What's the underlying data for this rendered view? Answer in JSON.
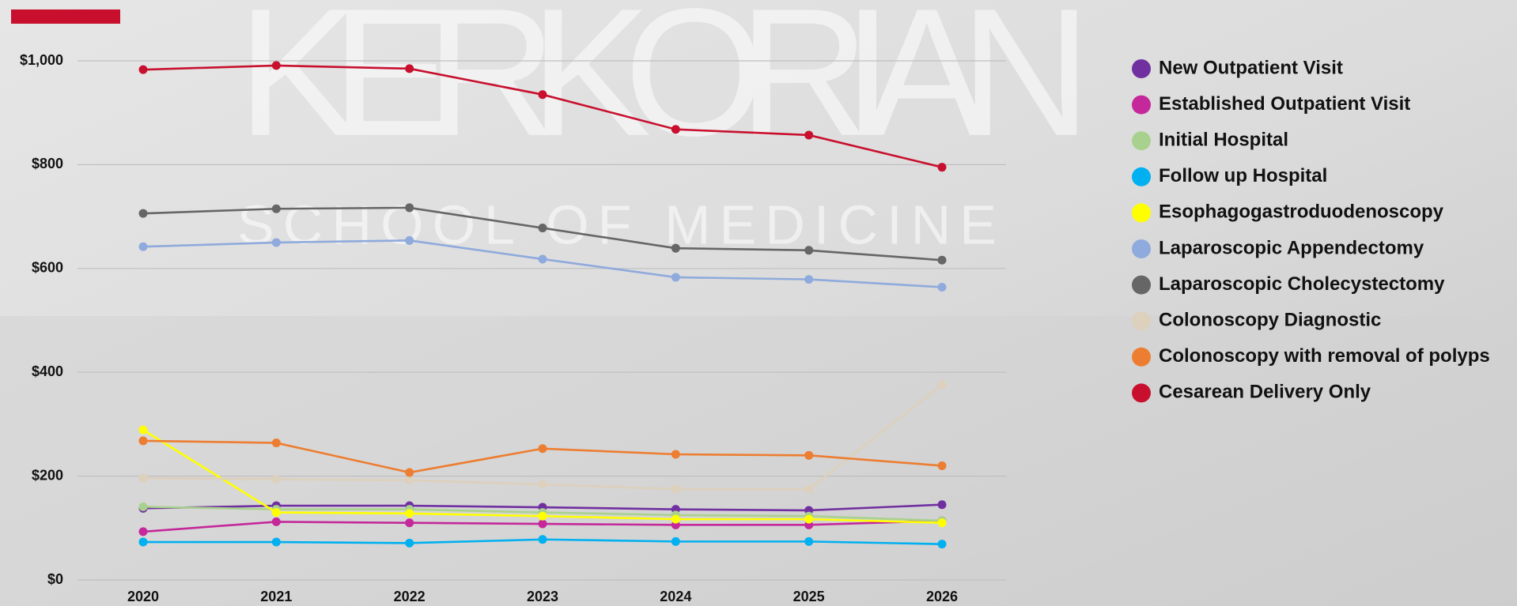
{
  "background_sign": [
    "KERKORIAN",
    "SCHOOL OF MEDICINE"
  ],
  "chart_data": {
    "type": "line",
    "categories": [
      "2020",
      "2021",
      "2022",
      "2023",
      "2024",
      "2025",
      "2026"
    ],
    "ylim": [
      0,
      1000
    ],
    "yticks": [
      {
        "value": 0,
        "label": "$0"
      },
      {
        "value": 200,
        "label": "$200"
      },
      {
        "value": 400,
        "label": "$400"
      },
      {
        "value": 600,
        "label": "$600"
      },
      {
        "value": 800,
        "label": "$800"
      },
      {
        "value": 1000,
        "label": "$1,000"
      }
    ],
    "grid": true,
    "legend": "right",
    "series": [
      {
        "name": "New Outpatient Visit",
        "color": "#7030a0",
        "values": [
          138,
          143,
          143,
          140,
          136,
          134,
          145
        ]
      },
      {
        "name": "Established Outpatient Visit",
        "color": "#c4289a",
        "values": [
          93,
          112,
          110,
          108,
          106,
          106,
          114
        ]
      },
      {
        "name": "Initial Hospital",
        "color": "#a9d18e",
        "values": [
          141,
          136,
          136,
          130,
          125,
          123,
          114
        ]
      },
      {
        "name": "Follow up Hospital",
        "color": "#00b0f0",
        "values": [
          73,
          73,
          71,
          78,
          74,
          74,
          69
        ]
      },
      {
        "name": "Esophagogastroduodenoscopy",
        "color": "#ffff00",
        "values": [
          289,
          130,
          128,
          123,
          117,
          117,
          110
        ]
      },
      {
        "name": "Laparoscopic Appendectomy",
        "color": "#8faadc",
        "values": [
          642,
          650,
          654,
          618,
          583,
          579,
          564
        ]
      },
      {
        "name": "Laparoscopic Cholecystectomy",
        "color": "#666666",
        "values": [
          706,
          715,
          717,
          678,
          639,
          635,
          616
        ]
      },
      {
        "name": "Colonoscopy Diagnostic",
        "color": "#ddd0bc",
        "values": [
          196,
          194,
          192,
          184,
          175,
          175,
          376
        ]
      },
      {
        "name": "Colonoscopy with removal of polyps",
        "color": "#ed7d31",
        "values": [
          268,
          264,
          207,
          253,
          242,
          240,
          220
        ]
      },
      {
        "name": "Cesarean Delivery Only",
        "color": "#c8102e",
        "values": [
          983,
          991,
          985,
          935,
          868,
          857,
          795
        ]
      }
    ]
  }
}
